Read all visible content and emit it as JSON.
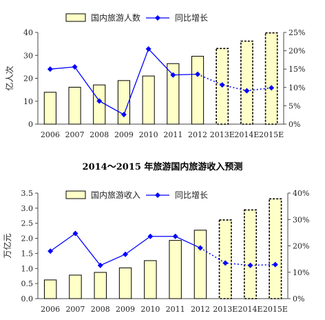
{
  "separator_title": "2014～2015 年旅游国内旅游收入预测",
  "chart_data": [
    {
      "type": "bar",
      "categories": [
        "2006",
        "2007",
        "2008",
        "2009",
        "2010",
        "2011",
        "2012",
        "2013E",
        "2014E",
        "2015E"
      ],
      "series": [
        {
          "name": "国内旅游人数",
          "kind": "bar",
          "axis": "left",
          "values": [
            13.9,
            16.1,
            17.1,
            19.0,
            21.0,
            26.4,
            29.6,
            33.0,
            36.2,
            39.8
          ]
        },
        {
          "name": "同比增长",
          "kind": "line",
          "axis": "right",
          "values": [
            15.0,
            15.6,
            6.3,
            2.6,
            20.5,
            13.4,
            13.6,
            10.7,
            9.1,
            9.9
          ]
        }
      ],
      "ylabel": "亿人次",
      "ylim": [
        0,
        40
      ],
      "y_ticks": [
        "0",
        "10",
        "20",
        "30",
        "40"
      ],
      "y2lim": [
        0,
        25
      ],
      "y2_ticks": [
        "0%",
        "5%",
        "10%",
        "15%",
        "20%",
        "25%"
      ],
      "forecast_from": "2013E",
      "legend": "top",
      "grid": false
    },
    {
      "type": "bar",
      "categories": [
        "2006",
        "2007",
        "2008",
        "2009",
        "2010",
        "2011",
        "2012",
        "2013E",
        "2014E",
        "2015E"
      ],
      "series": [
        {
          "name": "国内旅游收入",
          "kind": "bar",
          "axis": "left",
          "values": [
            0.62,
            0.78,
            0.87,
            1.02,
            1.26,
            1.93,
            2.27,
            2.61,
            2.94,
            3.31
          ]
        },
        {
          "name": "同比增长",
          "kind": "line",
          "axis": "right",
          "values": [
            18.0,
            24.7,
            12.6,
            16.8,
            23.6,
            23.6,
            19.2,
            13.5,
            12.6,
            12.9
          ]
        }
      ],
      "ylabel": "万亿元",
      "ylim": [
        0,
        3.5
      ],
      "y_ticks": [
        "0.0",
        "0.5",
        "1.0",
        "1.5",
        "2.0",
        "2.5",
        "3.0",
        "3.5"
      ],
      "y2lim": [
        0,
        40
      ],
      "y2_ticks": [
        "0%",
        "10%",
        "20%",
        "30%",
        "40%"
      ],
      "forecast_from": "2013E",
      "legend": "top",
      "grid": false
    }
  ],
  "colors": {
    "bar_fill": "#ffffc8",
    "line": "#0000ff",
    "axis": "#444444"
  }
}
